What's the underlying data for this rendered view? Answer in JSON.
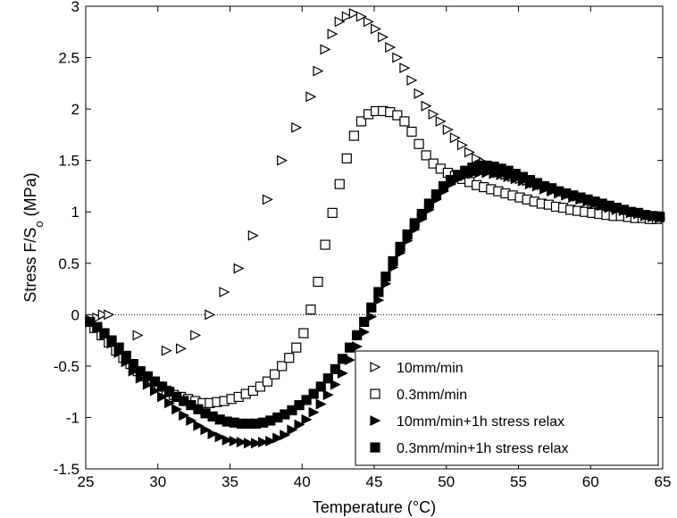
{
  "chart_data": {
    "type": "scatter",
    "title": "",
    "xlabel": "Temperature (°C)",
    "ylabel": {
      "main": "Stress F/S",
      "sub": "o",
      "unit": " (MPa)"
    },
    "xlim": [
      25,
      65
    ],
    "ylim": [
      -1.5,
      3
    ],
    "xticks": [
      25,
      30,
      35,
      40,
      45,
      50,
      55,
      60,
      65
    ],
    "yticks": [
      -1.5,
      -1,
      -0.5,
      0,
      0.5,
      1,
      1.5,
      2,
      2.5,
      3
    ],
    "ytick_labels": [
      "-1.5",
      "-1",
      "-0.5",
      "0",
      "0.5",
      "1",
      "1.5",
      "2",
      "2.5",
      "3"
    ],
    "zero_line": true,
    "grid": false,
    "legend_position": "bottom-right",
    "series": [
      {
        "name": "10mm/min",
        "marker": "triangle-right-open",
        "x": [
          25.3,
          25.8,
          26.2,
          26.6,
          28.6,
          30.6,
          31.6,
          32.6,
          33.6,
          34.6,
          35.6,
          36.6,
          37.6,
          38.6,
          39.6,
          40.6,
          41.1,
          41.6,
          42.1,
          42.6,
          43.1,
          43.6,
          44.1,
          44.6,
          45.1,
          45.6,
          46.1,
          46.6,
          47.1,
          47.6,
          48.1,
          48.6,
          49.1,
          49.6,
          50.1,
          50.6,
          51.1,
          51.6,
          52.1,
          52.6,
          53.1,
          53.6,
          54.1,
          54.6,
          55.1,
          55.6,
          56.1,
          56.6,
          57.1,
          57.6,
          58.1,
          58.6,
          59.1,
          59.6,
          60.1,
          60.6,
          61.1,
          61.6,
          62.1,
          62.6,
          63.1,
          63.6,
          64.1,
          64.6
        ],
        "y": [
          -0.05,
          -0.03,
          0,
          0,
          -0.2,
          -0.35,
          -0.33,
          -0.2,
          0,
          0.22,
          0.45,
          0.77,
          1.12,
          1.5,
          1.82,
          2.12,
          2.37,
          2.58,
          2.73,
          2.85,
          2.9,
          2.93,
          2.9,
          2.85,
          2.78,
          2.7,
          2.6,
          2.5,
          2.4,
          2.28,
          2.15,
          2.03,
          1.95,
          1.88,
          1.8,
          1.72,
          1.65,
          1.58,
          1.52,
          1.48,
          1.42,
          1.38,
          1.36,
          1.34,
          1.32,
          1.3,
          1.28,
          1.26,
          1.24,
          1.22,
          1.2,
          1.18,
          1.15,
          1.13,
          1.1,
          1.08,
          1.06,
          1.04,
          1.02,
          1.0,
          0.98,
          0.96,
          0.95,
          0.94
        ]
      },
      {
        "name": "0.3mm/min",
        "marker": "square-open",
        "x": [
          25.6,
          26.1,
          26.6,
          27.1,
          27.6,
          28.1,
          28.6,
          29.1,
          29.6,
          30.1,
          30.6,
          31.1,
          31.6,
          32.1,
          32.6,
          33.1,
          33.6,
          34.1,
          34.6,
          35.1,
          35.6,
          36.1,
          36.6,
          37.1,
          37.6,
          38.1,
          38.6,
          39.1,
          39.6,
          40.1,
          40.6,
          41.1,
          41.6,
          42.1,
          42.6,
          43.1,
          43.6,
          44.1,
          44.6,
          45.1,
          45.6,
          46.1,
          46.6,
          47.1,
          47.6,
          48.1,
          48.6,
          49.1,
          49.6,
          50.1,
          50.6,
          51.1,
          51.6,
          52.1,
          52.6,
          53.1,
          53.6,
          54.1,
          54.6,
          55.1,
          55.6,
          56.1,
          56.6,
          57.1,
          57.6,
          58.1,
          58.6,
          59.1,
          59.6,
          60.1,
          60.6,
          61.1,
          61.6,
          62.1,
          62.6,
          63.1,
          63.6,
          64.1,
          64.6
        ],
        "y": [
          -0.13,
          -0.2,
          -0.27,
          -0.35,
          -0.42,
          -0.48,
          -0.55,
          -0.6,
          -0.65,
          -0.7,
          -0.74,
          -0.78,
          -0.8,
          -0.82,
          -0.84,
          -0.86,
          -0.86,
          -0.85,
          -0.84,
          -0.82,
          -0.8,
          -0.77,
          -0.74,
          -0.7,
          -0.65,
          -0.58,
          -0.5,
          -0.42,
          -0.32,
          -0.18,
          0.05,
          0.32,
          0.68,
          0.99,
          1.27,
          1.52,
          1.74,
          1.88,
          1.95,
          1.98,
          1.98,
          1.97,
          1.94,
          1.88,
          1.78,
          1.66,
          1.55,
          1.47,
          1.42,
          1.38,
          1.35,
          1.32,
          1.29,
          1.26,
          1.24,
          1.22,
          1.2,
          1.18,
          1.16,
          1.14,
          1.12,
          1.1,
          1.08,
          1.07,
          1.05,
          1.04,
          1.02,
          1.01,
          1.0,
          0.99,
          0.98,
          0.97,
          0.96,
          0.96,
          0.95,
          0.94,
          0.94,
          0.93,
          0.93
        ]
      },
      {
        "name": "10mm/min+1h stress relax",
        "marker": "triangle-right-filled",
        "x": [
          25.3,
          25.8,
          26.3,
          26.8,
          27.3,
          27.8,
          28.3,
          28.8,
          29.3,
          29.8,
          30.3,
          30.8,
          31.3,
          31.8,
          32.3,
          32.8,
          33.3,
          33.8,
          34.3,
          34.8,
          35.3,
          35.8,
          36.3,
          36.8,
          37.3,
          37.8,
          38.3,
          38.8,
          39.3,
          39.8,
          40.3,
          40.8,
          41.3,
          41.8,
          42.3,
          42.8,
          43.3,
          43.8,
          44.3,
          44.8,
          45.3,
          45.8,
          46.3,
          46.8,
          47.3,
          47.8,
          48.3,
          48.8,
          49.3,
          49.8,
          50.3,
          50.8,
          51.3,
          51.8,
          52.3,
          52.8,
          53.3,
          53.8,
          54.3,
          54.8,
          55.3,
          55.8,
          56.3,
          56.8,
          57.3,
          57.8,
          58.3,
          58.8,
          59.3,
          59.8,
          60.3,
          60.8,
          61.3,
          61.8,
          62.3,
          62.8,
          63.3,
          63.8,
          64.3,
          64.8
        ],
        "y": [
          -0.07,
          -0.12,
          -0.2,
          -0.28,
          -0.37,
          -0.46,
          -0.55,
          -0.62,
          -0.68,
          -0.74,
          -0.8,
          -0.86,
          -0.92,
          -0.98,
          -1.03,
          -1.08,
          -1.12,
          -1.16,
          -1.19,
          -1.22,
          -1.23,
          -1.24,
          -1.25,
          -1.25,
          -1.24,
          -1.23,
          -1.2,
          -1.17,
          -1.12,
          -1.07,
          -1.02,
          -0.95,
          -0.87,
          -0.78,
          -0.68,
          -0.57,
          -0.44,
          -0.31,
          -0.17,
          -0.02,
          0.14,
          0.3,
          0.46,
          0.6,
          0.72,
          0.83,
          0.93,
          1.02,
          1.12,
          1.2,
          1.27,
          1.32,
          1.35,
          1.37,
          1.38,
          1.38,
          1.37,
          1.36,
          1.34,
          1.32,
          1.3,
          1.27,
          1.25,
          1.22,
          1.2,
          1.18,
          1.16,
          1.14,
          1.12,
          1.1,
          1.08,
          1.06,
          1.04,
          1.02,
          1.01,
          0.99,
          0.98,
          0.96,
          0.95,
          0.94
        ]
      },
      {
        "name": "0.3mm/min+1h stress relax",
        "marker": "square-filled",
        "x": [
          25.3,
          25.8,
          26.3,
          26.8,
          27.3,
          27.8,
          28.3,
          28.8,
          29.3,
          29.8,
          30.3,
          30.8,
          31.3,
          31.8,
          32.3,
          32.8,
          33.3,
          33.8,
          34.3,
          34.8,
          35.3,
          35.8,
          36.3,
          36.8,
          37.3,
          37.8,
          38.3,
          38.8,
          39.3,
          39.8,
          40.3,
          40.8,
          41.3,
          41.8,
          42.3,
          42.8,
          43.3,
          43.8,
          44.3,
          44.8,
          45.3,
          45.8,
          46.3,
          46.8,
          47.3,
          47.8,
          48.3,
          48.8,
          49.3,
          49.8,
          50.3,
          50.8,
          51.3,
          51.8,
          52.3,
          52.8,
          53.3,
          53.8,
          54.3,
          54.8,
          55.3,
          55.8,
          56.3,
          56.8,
          57.3,
          57.8,
          58.3,
          58.8,
          59.3,
          59.8,
          60.3,
          60.8,
          61.3,
          61.8,
          62.3,
          62.8,
          63.3,
          63.8,
          64.3,
          64.8
        ],
        "y": [
          -0.07,
          -0.12,
          -0.18,
          -0.25,
          -0.32,
          -0.4,
          -0.48,
          -0.55,
          -0.6,
          -0.65,
          -0.7,
          -0.75,
          -0.8,
          -0.84,
          -0.88,
          -0.92,
          -0.96,
          -0.99,
          -1.02,
          -1.04,
          -1.05,
          -1.06,
          -1.06,
          -1.06,
          -1.05,
          -1.03,
          -1.0,
          -0.97,
          -0.93,
          -0.88,
          -0.83,
          -0.77,
          -0.7,
          -0.62,
          -0.53,
          -0.43,
          -0.32,
          -0.2,
          -0.07,
          0.07,
          0.22,
          0.37,
          0.52,
          0.66,
          0.78,
          0.89,
          0.98,
          1.08,
          1.17,
          1.25,
          1.31,
          1.36,
          1.4,
          1.43,
          1.45,
          1.45,
          1.44,
          1.42,
          1.4,
          1.37,
          1.34,
          1.31,
          1.28,
          1.25,
          1.23,
          1.2,
          1.18,
          1.16,
          1.14,
          1.12,
          1.1,
          1.08,
          1.06,
          1.04,
          1.02,
          1.0,
          0.99,
          0.97,
          0.96,
          0.95
        ]
      }
    ]
  }
}
